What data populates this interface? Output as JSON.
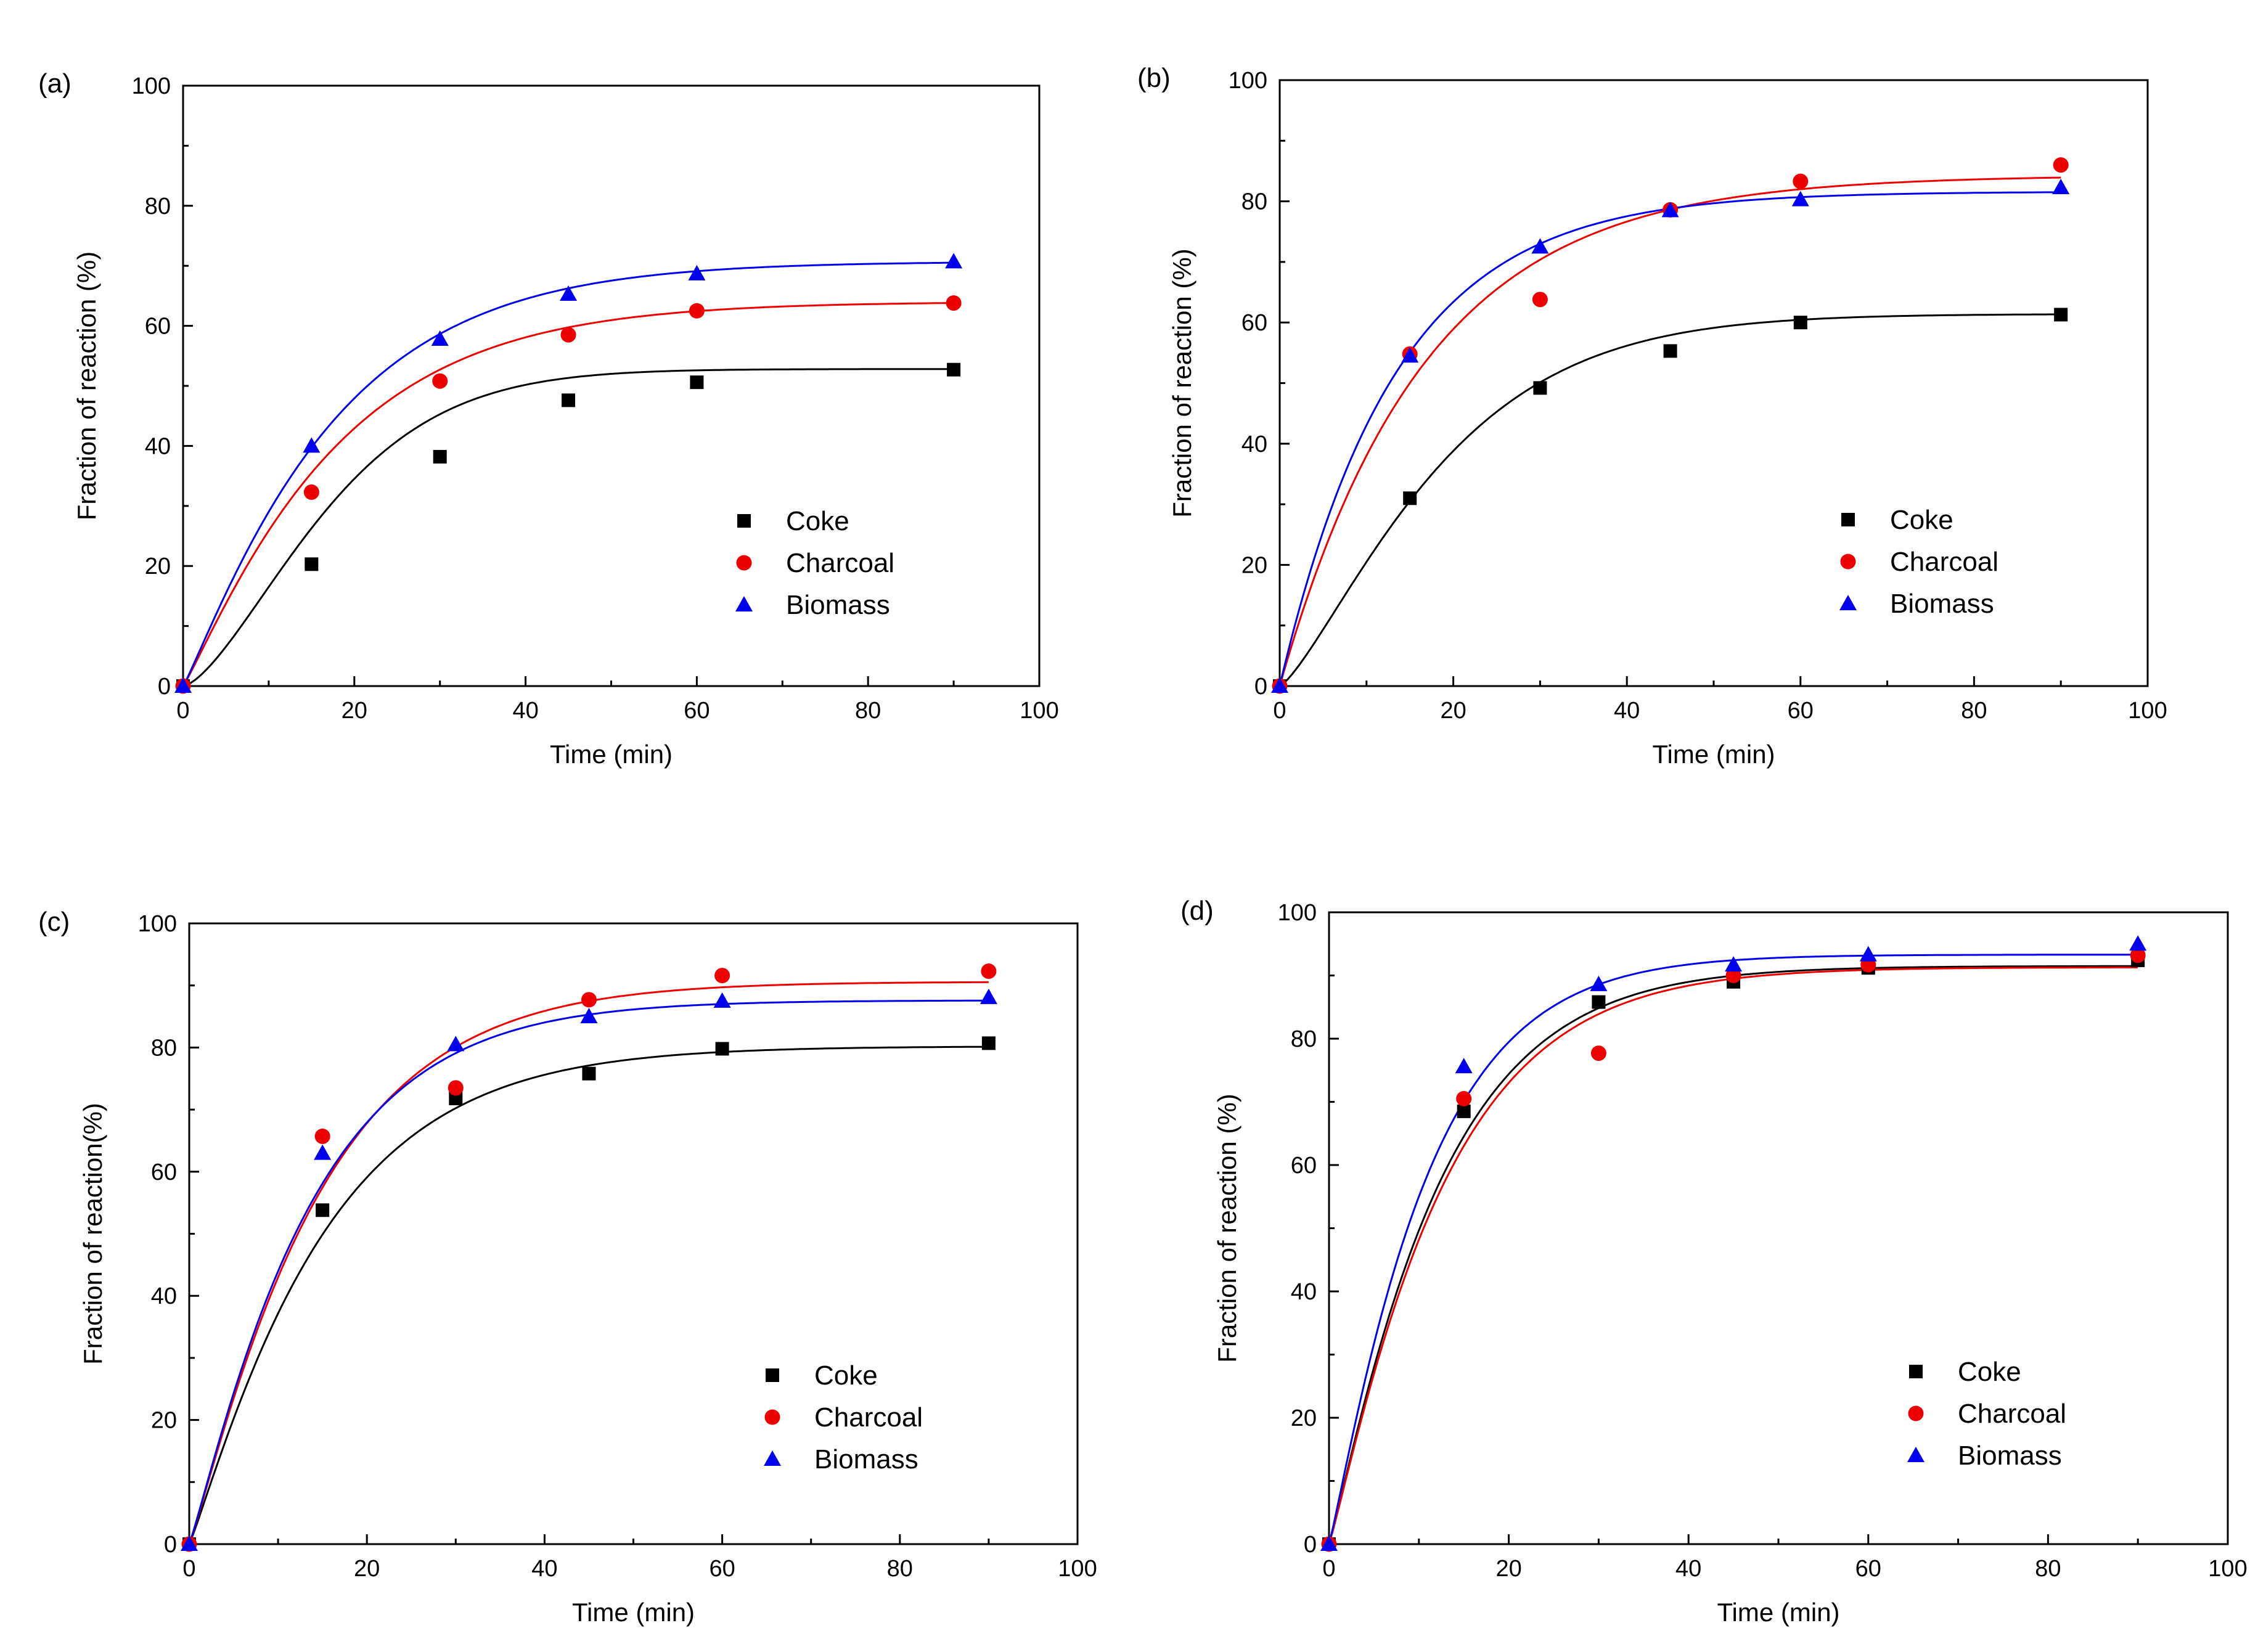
{
  "figure": {
    "colors": {
      "Coke": "#000000",
      "Charcoal": "#ee0000",
      "Biomass": "#0000ee",
      "axis": "#000000"
    }
  },
  "chart_data": [
    {
      "type": "scatter",
      "panel": "(a)",
      "xlabel": "Time (min)",
      "ylabel": "Fraction of reaction (%)",
      "xlim": [
        0,
        100
      ],
      "ylim": [
        0,
        100
      ],
      "xticks": [
        0,
        20,
        40,
        60,
        80,
        100
      ],
      "yticks": [
        0,
        20,
        40,
        60,
        80,
        100
      ],
      "legend": [
        "Coke",
        "Charcoal",
        "Biomass"
      ],
      "legend_position": "lower-right",
      "grid": false,
      "series": [
        {
          "name": "Coke",
          "marker": "square",
          "color": "#000000",
          "x": [
            0,
            15,
            30,
            45,
            60,
            90
          ],
          "y": [
            0,
            20.3,
            38.2,
            47.6,
            50.6,
            52.7
          ],
          "fit": {
            "ymax": 52.8,
            "k": 0.052,
            "n": 1.5
          }
        },
        {
          "name": "Charcoal",
          "marker": "circle",
          "color": "#ee0000",
          "x": [
            0,
            15,
            30,
            45,
            60,
            90
          ],
          "y": [
            0,
            32.3,
            50.8,
            58.5,
            62.5,
            63.8
          ],
          "fit": {
            "ymax": 64.0,
            "k": 0.055,
            "n": 1.1
          }
        },
        {
          "name": "Biomass",
          "marker": "triangle",
          "color": "#0000ee",
          "x": [
            0,
            15,
            30,
            45,
            60,
            90
          ],
          "y": [
            0,
            40.0,
            57.8,
            65.3,
            68.7,
            70.7
          ],
          "fit": {
            "ymax": 70.7,
            "k": 0.056,
            "n": 1.1
          }
        }
      ]
    },
    {
      "type": "scatter",
      "panel": "(b)",
      "xlabel": "Time (min)",
      "ylabel": "Fraction of reaction (%)",
      "xlim": [
        0,
        100
      ],
      "ylim": [
        0,
        100
      ],
      "xticks": [
        0,
        20,
        40,
        60,
        80,
        100
      ],
      "yticks": [
        0,
        20,
        40,
        60,
        80,
        100
      ],
      "legend": [
        "Coke",
        "Charcoal",
        "Biomass"
      ],
      "legend_position": "lower-right",
      "grid": false,
      "series": [
        {
          "name": "Coke",
          "marker": "square",
          "color": "#000000",
          "x": [
            0,
            15,
            30,
            45,
            60,
            90
          ],
          "y": [
            0,
            31.0,
            49.2,
            55.3,
            60.0,
            61.3
          ],
          "fit": {
            "ymax": 61.4,
            "k": 0.05,
            "n": 1.3
          }
        },
        {
          "name": "Charcoal",
          "marker": "circle",
          "color": "#ee0000",
          "x": [
            0,
            15,
            30,
            45,
            60,
            90
          ],
          "y": [
            0,
            54.8,
            63.8,
            78.6,
            83.3,
            86.0
          ],
          "fit": {
            "ymax": 84.3,
            "k": 0.06,
            "n": 1.0
          }
        },
        {
          "name": "Biomass",
          "marker": "triangle",
          "color": "#0000ee",
          "x": [
            0,
            15,
            30,
            45,
            60,
            90
          ],
          "y": [
            0,
            54.5,
            72.5,
            78.5,
            80.3,
            82.3
          ],
          "fit": {
            "ymax": 81.6,
            "k": 0.075,
            "n": 1.0
          }
        }
      ]
    },
    {
      "type": "scatter",
      "panel": "(c)",
      "xlabel": "Time (min)",
      "ylabel": "Fraction of reaction(%)",
      "xlim": [
        0,
        100
      ],
      "ylim": [
        0,
        100
      ],
      "xticks": [
        0,
        20,
        40,
        60,
        80,
        100
      ],
      "yticks": [
        0,
        20,
        40,
        60,
        80,
        100
      ],
      "legend": [
        "Coke",
        "Charcoal",
        "Biomass"
      ],
      "legend_position": "lower-right",
      "grid": false,
      "series": [
        {
          "name": "Coke",
          "marker": "square",
          "color": "#000000",
          "x": [
            0,
            15,
            30,
            45,
            60,
            90
          ],
          "y": [
            0,
            53.8,
            71.8,
            75.8,
            79.8,
            80.7
          ],
          "fit": {
            "ymax": 80.2,
            "k": 0.065,
            "n": 1.1
          }
        },
        {
          "name": "Charcoal",
          "marker": "circle",
          "color": "#ee0000",
          "x": [
            0,
            15,
            30,
            45,
            60,
            90
          ],
          "y": [
            0,
            65.7,
            73.5,
            87.7,
            91.6,
            92.3
          ],
          "fit": {
            "ymax": 90.6,
            "k": 0.067,
            "n": 1.1
          }
        },
        {
          "name": "Biomass",
          "marker": "triangle",
          "color": "#0000ee",
          "x": [
            0,
            15,
            30,
            45,
            60,
            90
          ],
          "y": [
            0,
            63.0,
            80.5,
            85.0,
            87.5,
            88.1
          ],
          "fit": {
            "ymax": 87.6,
            "k": 0.072,
            "n": 1.1
          }
        }
      ]
    },
    {
      "type": "scatter",
      "panel": "(d)",
      "xlabel": "Time (min)",
      "ylabel": "Fraction of reaction (%)",
      "xlim": [
        0,
        100
      ],
      "ylim": [
        0,
        100
      ],
      "xticks": [
        0,
        20,
        40,
        60,
        80,
        100
      ],
      "yticks": [
        0,
        20,
        40,
        60,
        80,
        100
      ],
      "legend": [
        "Coke",
        "Charcoal",
        "Biomass"
      ],
      "legend_position": "lower-right",
      "grid": false,
      "series": [
        {
          "name": "Coke",
          "marker": "square",
          "color": "#000000",
          "x": [
            0,
            15,
            30,
            45,
            60,
            90
          ],
          "y": [
            0,
            68.5,
            85.8,
            89.0,
            91.2,
            92.4
          ],
          "fit": {
            "ymax": 91.5,
            "k": 0.08,
            "n": 1.1
          }
        },
        {
          "name": "Charcoal",
          "marker": "circle",
          "color": "#ee0000",
          "x": [
            0,
            15,
            30,
            45,
            60,
            90
          ],
          "y": [
            0,
            70.5,
            77.7,
            90.0,
            91.7,
            93.2
          ],
          "fit": {
            "ymax": 91.3,
            "k": 0.077,
            "n": 1.1
          }
        },
        {
          "name": "Biomass",
          "marker": "triangle",
          "color": "#0000ee",
          "x": [
            0,
            15,
            30,
            45,
            60,
            90
          ],
          "y": [
            0,
            75.6,
            88.6,
            91.7,
            93.3,
            95.0
          ],
          "fit": {
            "ymax": 93.3,
            "k": 0.09,
            "n": 1.1
          }
        }
      ]
    }
  ]
}
